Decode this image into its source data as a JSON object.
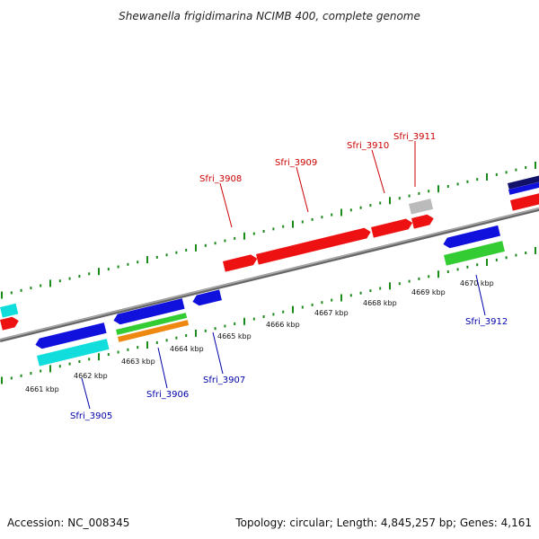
{
  "header": {
    "title": "Shewanella frigidimarina NCIMB 400, complete genome"
  },
  "footer": {
    "accession": "Accession: NC_008345",
    "summary": "Topology: circular; Length: 4,845,257 bp; Genes: 4,161"
  },
  "colors": {
    "fwd_label": "#cc0000",
    "rev_label": "#0000aa",
    "tick": "#1a8a1a",
    "backbone": "#888888",
    "red": "#ee1111",
    "blue": "#1111dd",
    "cyan": "#11dddd",
    "green": "#33cc33",
    "orange": "#ee8811",
    "gray": "#bbbbbb",
    "navy": "#11116a"
  },
  "scale": {
    "ticks": [
      {
        "label": "4661 kbp"
      },
      {
        "label": "4662 kbp"
      },
      {
        "label": "4663 kbp"
      },
      {
        "label": "4664 kbp"
      },
      {
        "label": "4665 kbp"
      },
      {
        "label": "4666 kbp"
      },
      {
        "label": "4667 kbp"
      },
      {
        "label": "4668 kbp"
      },
      {
        "label": "4669 kbp"
      },
      {
        "label": "4670 kbp"
      }
    ]
  },
  "gene_labels": {
    "forward": [
      "Sfri_3908",
      "Sfri_3909",
      "Sfri_3910",
      "Sfri_3911"
    ],
    "reverse": [
      "Sfri_3905",
      "Sfri_3906",
      "Sfri_3907",
      "Sfri_3912"
    ]
  }
}
